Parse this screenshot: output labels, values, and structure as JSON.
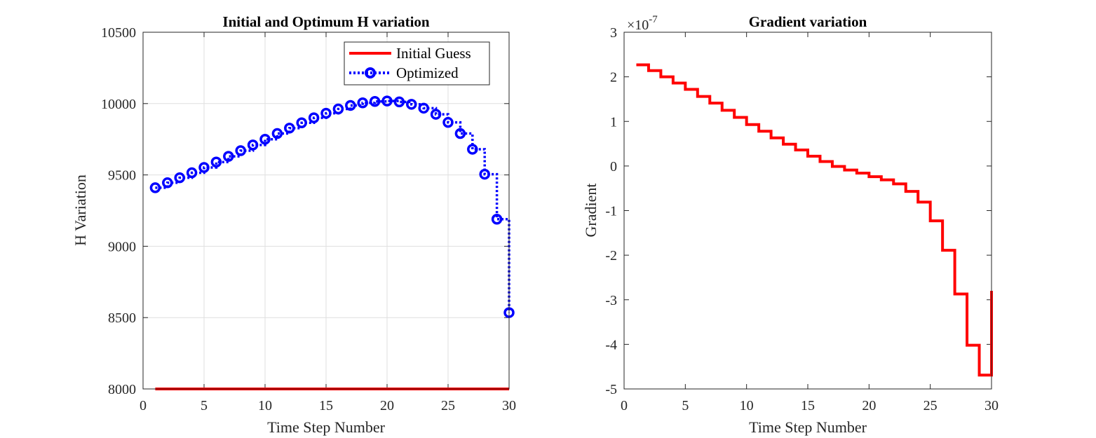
{
  "chart_data": [
    {
      "type": "line",
      "title": "Initial and Optimum H variation",
      "xlabel": "Time Step Number",
      "ylabel": "H Variation",
      "xlim": [
        0,
        30
      ],
      "ylim": [
        8000,
        10500
      ],
      "xticks": [
        "0",
        "5",
        "10",
        "15",
        "20",
        "25",
        "30"
      ],
      "yticks": [
        "8000",
        "8500",
        "9000",
        "9500",
        "10000",
        "10500"
      ],
      "grid": true,
      "legend_position": "top-right",
      "series": [
        {
          "name": "Initial Guess",
          "color": "#ff0000",
          "style": "solid",
          "x": [
            1,
            30
          ],
          "values": [
            8000,
            8000
          ]
        },
        {
          "name": "Optimized",
          "color": "#0000ff",
          "style": "dotted-stairs-circle-markers",
          "x": [
            1,
            2,
            3,
            4,
            5,
            6,
            7,
            8,
            9,
            10,
            11,
            12,
            13,
            14,
            15,
            16,
            17,
            18,
            19,
            20,
            21,
            22,
            23,
            24,
            25,
            26,
            27,
            28,
            29,
            30
          ],
          "values": [
            9410,
            9445,
            9480,
            9515,
            9552,
            9590,
            9630,
            9670,
            9710,
            9750,
            9790,
            9828,
            9865,
            9900,
            9932,
            9962,
            9987,
            10005,
            10015,
            10018,
            10012,
            9995,
            9968,
            9925,
            9868,
            9790,
            9680,
            9505,
            9190,
            8535
          ]
        }
      ]
    },
    {
      "type": "line",
      "title": "Gradient variation",
      "xlabel": "Time Step Number",
      "ylabel": "Gradient",
      "exponent_label": "×10",
      "exponent_power": "-7",
      "xlim": [
        0,
        30
      ],
      "ylim": [
        -5,
        3
      ],
      "xticks": [
        "0",
        "5",
        "10",
        "15",
        "20",
        "25",
        "30"
      ],
      "yticks": [
        "-5",
        "-4",
        "-3",
        "-2",
        "-1",
        "0",
        "1",
        "2",
        "3"
      ],
      "grid": false,
      "series": [
        {
          "color": "#ff0000",
          "style": "stairs",
          "x": [
            1,
            2,
            3,
            4,
            5,
            6,
            7,
            8,
            9,
            10,
            11,
            12,
            13,
            14,
            15,
            16,
            17,
            18,
            19,
            20,
            21,
            22,
            23,
            24,
            25,
            26,
            27,
            28,
            29,
            30
          ],
          "values": [
            2.27,
            2.14,
            2.0,
            1.86,
            1.72,
            1.56,
            1.41,
            1.25,
            1.09,
            0.93,
            0.78,
            0.63,
            0.49,
            0.36,
            0.22,
            0.1,
            -0.01,
            -0.09,
            -0.16,
            -0.24,
            -0.31,
            -0.4,
            -0.57,
            -0.81,
            -1.23,
            -1.89,
            -2.87,
            -4.02,
            -4.69,
            -2.8
          ]
        }
      ]
    }
  ]
}
